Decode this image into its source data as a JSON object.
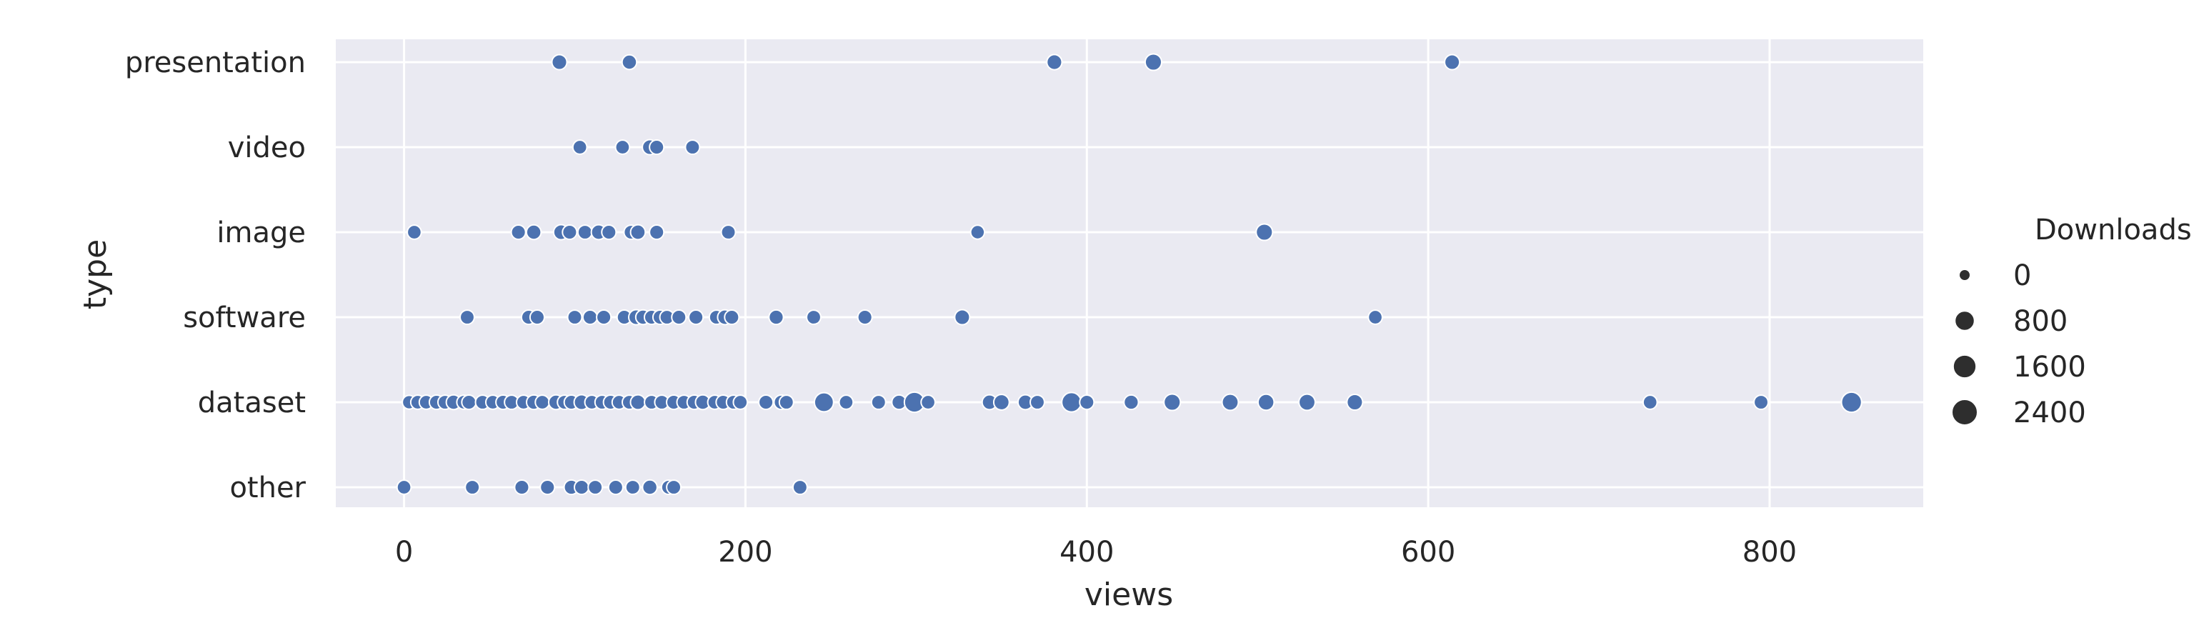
{
  "chart_data": {
    "type": "scatter",
    "title": "",
    "xlabel": "views",
    "ylabel": "type",
    "xlim": [
      -40,
      890
    ],
    "x_ticks": [
      "0",
      "200",
      "400",
      "600",
      "800"
    ],
    "x_tick_values": [
      0,
      200,
      400,
      600,
      800
    ],
    "categories": [
      "presentation",
      "video",
      "image",
      "software",
      "dataset",
      "other"
    ],
    "grid": true,
    "legend": {
      "title": "Downloads",
      "placement": "right",
      "entries": [
        {
          "label": "0",
          "size": 0
        },
        {
          "label": "800",
          "size": 800
        },
        {
          "label": "1600",
          "size": 1600
        },
        {
          "label": "2400",
          "size": 2400
        }
      ]
    },
    "marker_color": "#4c72b0",
    "background_color": "#eaeaf2",
    "series": [
      {
        "category": "presentation",
        "points": [
          {
            "x": 91,
            "downloads": 150
          },
          {
            "x": 132,
            "downloads": 120
          },
          {
            "x": 381,
            "downloads": 160
          },
          {
            "x": 439,
            "downloads": 300
          },
          {
            "x": 614,
            "downloads": 150
          }
        ]
      },
      {
        "category": "video",
        "points": [
          {
            "x": 103,
            "downloads": 80
          },
          {
            "x": 128,
            "downloads": 80
          },
          {
            "x": 144,
            "downloads": 150
          },
          {
            "x": 148,
            "downloads": 100
          },
          {
            "x": 169,
            "downloads": 90
          }
        ]
      },
      {
        "category": "image",
        "points": [
          {
            "x": 6,
            "downloads": 80
          },
          {
            "x": 67,
            "downloads": 100
          },
          {
            "x": 76,
            "downloads": 120
          },
          {
            "x": 92,
            "downloads": 150
          },
          {
            "x": 97,
            "downloads": 100
          },
          {
            "x": 106,
            "downloads": 90
          },
          {
            "x": 114,
            "downloads": 130
          },
          {
            "x": 120,
            "downloads": 100
          },
          {
            "x": 133,
            "downloads": 90
          },
          {
            "x": 137,
            "downloads": 130
          },
          {
            "x": 148,
            "downloads": 100
          },
          {
            "x": 190,
            "downloads": 90
          },
          {
            "x": 336,
            "downloads": 70
          },
          {
            "x": 504,
            "downloads": 300
          }
        ]
      },
      {
        "category": "software",
        "points": [
          {
            "x": 37,
            "downloads": 90
          },
          {
            "x": 73,
            "downloads": 100
          },
          {
            "x": 78,
            "downloads": 100
          },
          {
            "x": 100,
            "downloads": 90
          },
          {
            "x": 109,
            "downloads": 100
          },
          {
            "x": 117,
            "downloads": 100
          },
          {
            "x": 129,
            "downloads": 100
          },
          {
            "x": 136,
            "downloads": 150
          },
          {
            "x": 140,
            "downloads": 120
          },
          {
            "x": 145,
            "downloads": 100
          },
          {
            "x": 150,
            "downloads": 100
          },
          {
            "x": 154,
            "downloads": 90
          },
          {
            "x": 161,
            "downloads": 100
          },
          {
            "x": 171,
            "downloads": 100
          },
          {
            "x": 183,
            "downloads": 90
          },
          {
            "x": 188,
            "downloads": 130
          },
          {
            "x": 192,
            "downloads": 100
          },
          {
            "x": 218,
            "downloads": 110
          },
          {
            "x": 240,
            "downloads": 90
          },
          {
            "x": 270,
            "downloads": 100
          },
          {
            "x": 327,
            "downloads": 150
          },
          {
            "x": 569,
            "downloads": 80
          }
        ]
      },
      {
        "category": "dataset",
        "points": [
          {
            "x": 3,
            "downloads": 60
          },
          {
            "x": 8,
            "downloads": 80
          },
          {
            "x": 13,
            "downloads": 80
          },
          {
            "x": 19,
            "downloads": 100
          },
          {
            "x": 24,
            "downloads": 90
          },
          {
            "x": 29,
            "downloads": 120
          },
          {
            "x": 35,
            "downloads": 80
          },
          {
            "x": 38,
            "downloads": 100
          },
          {
            "x": 46,
            "downloads": 90
          },
          {
            "x": 52,
            "downloads": 80
          },
          {
            "x": 58,
            "downloads": 100
          },
          {
            "x": 63,
            "downloads": 90
          },
          {
            "x": 70,
            "downloads": 80
          },
          {
            "x": 76,
            "downloads": 110
          },
          {
            "x": 81,
            "downloads": 80
          },
          {
            "x": 89,
            "downloads": 120
          },
          {
            "x": 94,
            "downloads": 90
          },
          {
            "x": 98,
            "downloads": 100
          },
          {
            "x": 104,
            "downloads": 150
          },
          {
            "x": 110,
            "downloads": 80
          },
          {
            "x": 116,
            "downloads": 90
          },
          {
            "x": 121,
            "downloads": 100
          },
          {
            "x": 126,
            "downloads": 80
          },
          {
            "x": 132,
            "downloads": 90
          },
          {
            "x": 137,
            "downloads": 140
          },
          {
            "x": 145,
            "downloads": 90
          },
          {
            "x": 151,
            "downloads": 90
          },
          {
            "x": 158,
            "downloads": 100
          },
          {
            "x": 164,
            "downloads": 90
          },
          {
            "x": 170,
            "downloads": 100
          },
          {
            "x": 175,
            "downloads": 120
          },
          {
            "x": 182,
            "downloads": 80
          },
          {
            "x": 187,
            "downloads": 100
          },
          {
            "x": 193,
            "downloads": 90
          },
          {
            "x": 197,
            "downloads": 80
          },
          {
            "x": 212,
            "downloads": 100
          },
          {
            "x": 221,
            "downloads": 110
          },
          {
            "x": 224,
            "downloads": 90
          },
          {
            "x": 246,
            "downloads": 700
          },
          {
            "x": 259,
            "downloads": 80
          },
          {
            "x": 278,
            "downloads": 90
          },
          {
            "x": 290,
            "downloads": 110
          },
          {
            "x": 299,
            "downloads": 900
          },
          {
            "x": 307,
            "downloads": 80
          },
          {
            "x": 343,
            "downloads": 130
          },
          {
            "x": 350,
            "downloads": 200
          },
          {
            "x": 364,
            "downloads": 130
          },
          {
            "x": 371,
            "downloads": 90
          },
          {
            "x": 391,
            "downloads": 750
          },
          {
            "x": 400,
            "downloads": 100
          },
          {
            "x": 426,
            "downloads": 110
          },
          {
            "x": 450,
            "downloads": 300
          },
          {
            "x": 484,
            "downloads": 280
          },
          {
            "x": 505,
            "downloads": 250
          },
          {
            "x": 529,
            "downloads": 280
          },
          {
            "x": 557,
            "downloads": 220
          },
          {
            "x": 730,
            "downloads": 80
          },
          {
            "x": 795,
            "downloads": 90
          },
          {
            "x": 848,
            "downloads": 900
          }
        ]
      },
      {
        "category": "other",
        "points": [
          {
            "x": 0,
            "downloads": 80
          },
          {
            "x": 40,
            "downloads": 90
          },
          {
            "x": 69,
            "downloads": 100
          },
          {
            "x": 84,
            "downloads": 100
          },
          {
            "x": 98,
            "downloads": 110
          },
          {
            "x": 104,
            "downloads": 100
          },
          {
            "x": 112,
            "downloads": 90
          },
          {
            "x": 124,
            "downloads": 100
          },
          {
            "x": 134,
            "downloads": 90
          },
          {
            "x": 144,
            "downloads": 120
          },
          {
            "x": 155,
            "downloads": 100
          },
          {
            "x": 158,
            "downloads": 90
          },
          {
            "x": 232,
            "downloads": 90
          }
        ]
      }
    ]
  }
}
